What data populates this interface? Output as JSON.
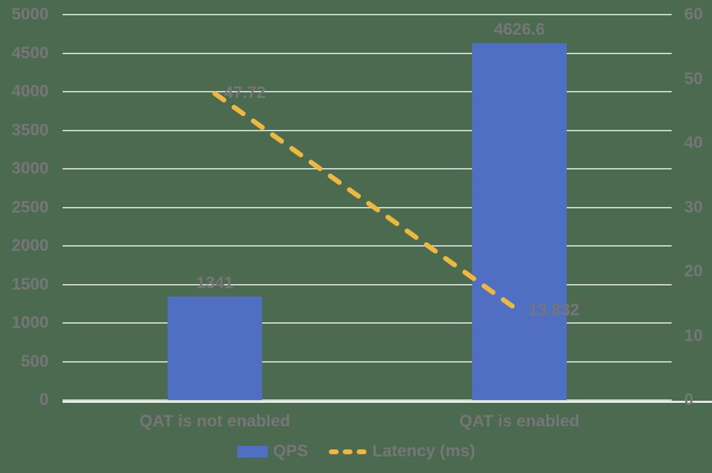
{
  "colors": {
    "background": "#4B6B50",
    "bar": "#4F6FC2",
    "line": "#EFB73D",
    "gridline": "#D2D6D0",
    "axis_line": "#E8EAE4",
    "text": "#767676"
  },
  "chart_data": {
    "type": "bar",
    "subtype": "combo-bar-line",
    "title": "",
    "categories": [
      "QAT is not enabled",
      "QAT is enabled"
    ],
    "series": [
      {
        "name": "QPS",
        "type": "bar",
        "axis": "left",
        "values": [
          1341,
          4626.6
        ],
        "data_labels": [
          "1341",
          "4626.6"
        ]
      },
      {
        "name": "Latency (ms)",
        "type": "line",
        "axis": "right",
        "dashed": true,
        "values": [
          47.72,
          13.832
        ],
        "data_labels": [
          "47.72",
          "13.832"
        ]
      }
    ],
    "left_axis": {
      "min": 0,
      "max": 5000,
      "step": 500,
      "tick_labels": [
        "0",
        "500",
        "1000",
        "1500",
        "2000",
        "2500",
        "3000",
        "3500",
        "4000",
        "4500",
        "5000"
      ]
    },
    "right_axis": {
      "min": 0,
      "max": 60,
      "step": 10,
      "tick_labels": [
        "0",
        "10",
        "20",
        "30",
        "40",
        "50",
        "60"
      ]
    },
    "grid": true,
    "legend_position": "bottom",
    "legend": [
      {
        "label": "QPS",
        "swatch": "bar"
      },
      {
        "label": "Latency (ms)",
        "swatch": "dashed-line"
      }
    ]
  }
}
